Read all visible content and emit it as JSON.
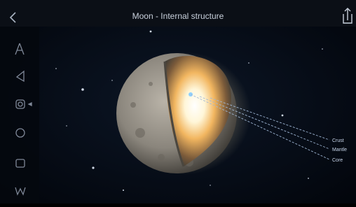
{
  "header": {
    "title": "Moon - Internal structure"
  },
  "labels": [
    "Crust",
    "Mantle",
    "Core"
  ]
}
